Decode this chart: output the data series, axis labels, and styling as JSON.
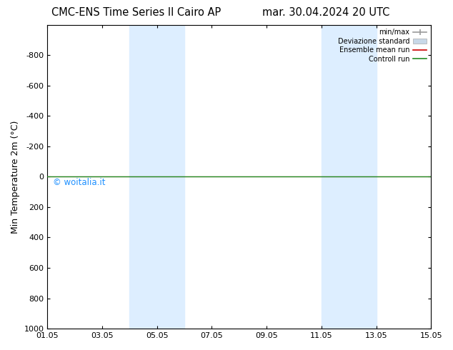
{
  "title_left": "CMC-ENS Time Series Il Cairo AP",
  "title_right": "mar. 30.04.2024 20 UTC",
  "ylabel": "Min Temperature 2m (°C)",
  "xlim": [
    1.05,
    15.05
  ],
  "ylim": [
    -1000,
    1000
  ],
  "yaxis_inverted": true,
  "xticks": [
    1.05,
    3.05,
    5.05,
    7.05,
    9.05,
    11.05,
    13.05,
    15.05
  ],
  "xtick_labels": [
    "01.05",
    "03.05",
    "05.05",
    "07.05",
    "09.05",
    "11.05",
    "13.05",
    "15.05"
  ],
  "yticks": [
    -800,
    -600,
    -400,
    -200,
    0,
    200,
    400,
    600,
    800,
    1000
  ],
  "bg_color": "#ffffff",
  "shaded_regions": [
    [
      4.05,
      5.05
    ],
    [
      5.05,
      6.05
    ],
    [
      11.05,
      12.05
    ],
    [
      12.05,
      13.05
    ]
  ],
  "shaded_color": "#ddeeff",
  "control_run_y": 0.0,
  "ensemble_mean_y": 0.0,
  "control_run_color": "#228B22",
  "ensemble_mean_color": "#cc0000",
  "minmax_color": "#999999",
  "devstd_color": "#c8d8e8",
  "watermark_text": "© woitalia.it",
  "watermark_color": "#1e90ff",
  "legend_labels": [
    "min/max",
    "Deviazione standard",
    "Ensemble mean run",
    "Controll run"
  ],
  "legend_colors": [
    "#999999",
    "#c8d8e8",
    "#cc0000",
    "#228B22"
  ]
}
